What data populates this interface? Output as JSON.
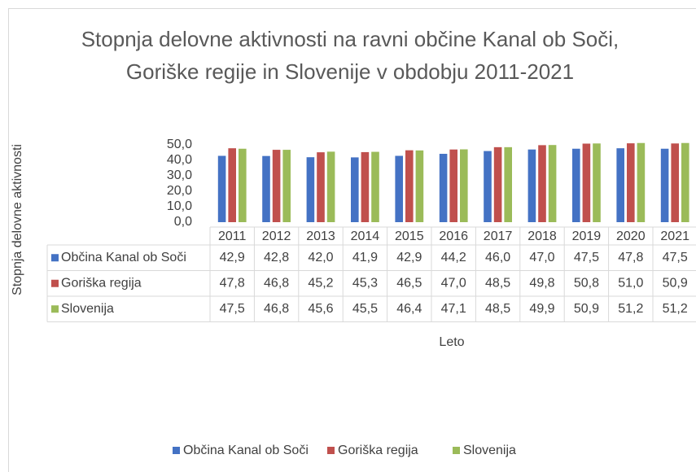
{
  "chart_data": {
    "type": "bar",
    "title": "Stopnja delovne aktivnosti na ravni občine Kanal ob Soči, Goriške regije in Slovenije v obdobju 2011-2021",
    "y_label": "Stopnja delovne aktivnosti",
    "x_label": "Leto",
    "categories": [
      "2011",
      "2012",
      "2013",
      "2014",
      "2015",
      "2016",
      "2017",
      "2018",
      "2019",
      "2020",
      "2021"
    ],
    "series": [
      {
        "name": "Občina Kanal ob Soči",
        "color": "#4472c4",
        "values": [
          42.9,
          42.8,
          42.0,
          41.9,
          42.9,
          44.2,
          46.0,
          47.0,
          47.5,
          47.8,
          47.5
        ],
        "value_labels": [
          "42,9",
          "42,8",
          "42,0",
          "41,9",
          "42,9",
          "44,2",
          "46,0",
          "47,0",
          "47,5",
          "47,8",
          "47,5"
        ]
      },
      {
        "name": "Goriška regija",
        "color": "#c0504d",
        "values": [
          47.8,
          46.8,
          45.2,
          45.3,
          46.5,
          47.0,
          48.5,
          49.8,
          50.8,
          51.0,
          50.9
        ],
        "value_labels": [
          "47,8",
          "46,8",
          "45,2",
          "45,3",
          "46,5",
          "47,0",
          "48,5",
          "49,8",
          "50,8",
          "51,0",
          "50,9"
        ]
      },
      {
        "name": "Slovenija",
        "color": "#9bbb59",
        "values": [
          47.5,
          46.8,
          45.6,
          45.5,
          46.4,
          47.1,
          48.5,
          49.9,
          50.9,
          51.2,
          51.2
        ],
        "value_labels": [
          "47,5",
          "46,8",
          "45,6",
          "45,5",
          "46,4",
          "47,1",
          "48,5",
          "49,9",
          "50,9",
          "51,2",
          "51,2"
        ]
      }
    ],
    "ylim": [
      0,
      54
    ],
    "yticks": [
      {
        "value": 0,
        "label": "0,0"
      },
      {
        "value": 10,
        "label": "10,0"
      },
      {
        "value": 20,
        "label": "20,0"
      },
      {
        "value": 30,
        "label": "30,0"
      },
      {
        "value": 40,
        "label": "40,0"
      },
      {
        "value": 50,
        "label": "50,0"
      }
    ],
    "grid": false,
    "legend": "bottom"
  }
}
